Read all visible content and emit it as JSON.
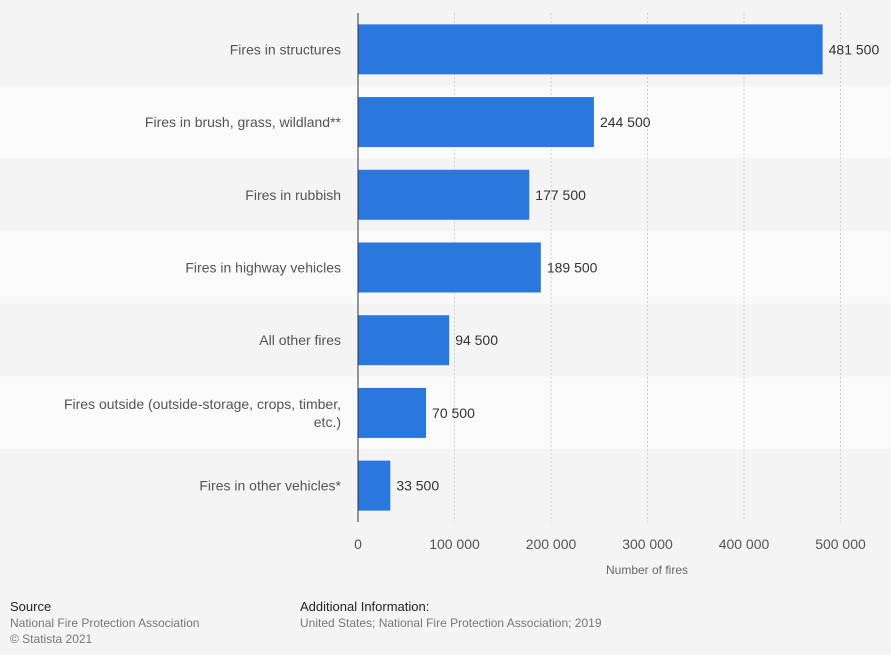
{
  "chart_data": {
    "type": "bar",
    "orientation": "horizontal",
    "categories": [
      "Fires in structures",
      "Fires in brush, grass, wildland**",
      "Fires in rubbish",
      "Fires in highway vehicles",
      "All other fires",
      [
        "Fires outside (outside-storage, crops, timber,",
        "etc.)"
      ],
      "Fires in other vehicles*"
    ],
    "values": [
      481500,
      244500,
      177500,
      189500,
      94500,
      70500,
      33500
    ],
    "value_labels": [
      "481 500",
      "244 500",
      "177 500",
      "189 500",
      "94 500",
      "70 500",
      "33 500"
    ],
    "xlim": [
      0,
      550000
    ],
    "ticks": [
      0,
      100000,
      200000,
      300000,
      400000,
      500000
    ],
    "tick_labels": [
      "0",
      "100 000",
      "200 000",
      "300 000",
      "400 000",
      "500 000"
    ],
    "xlabel": "Number of fires",
    "ylabel": "",
    "grid": true,
    "bar_color": "#2a77de"
  },
  "footer": {
    "source_heading": "Source",
    "source_line1": "National Fire Protection Association",
    "source_line2": "© Statista 2021",
    "info_heading": "Additional Information:",
    "info_line1": "United States; National Fire Protection Association; 2019"
  }
}
